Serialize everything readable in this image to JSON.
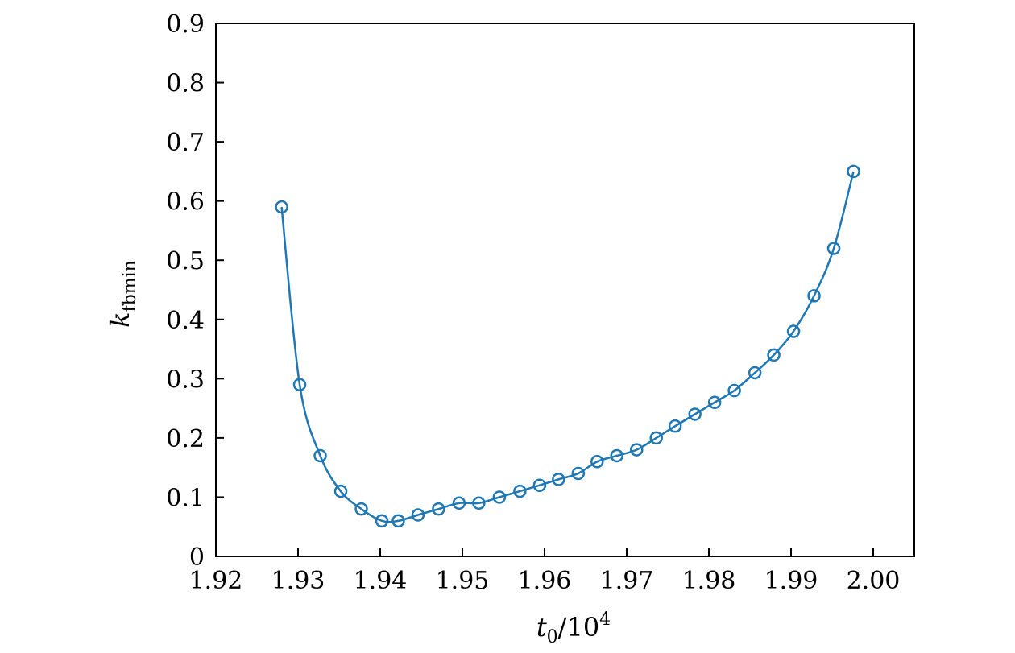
{
  "chart_data": {
    "type": "line",
    "xlabel": {
      "var": "t",
      "sub": "0",
      "rest": "/10",
      "sup": "4"
    },
    "ylabel": {
      "var": "k",
      "sub": "fbmin"
    },
    "xlim": [
      1.92,
      2.005
    ],
    "ylim": [
      0,
      0.9
    ],
    "xticks": [
      "1.92",
      "1.93",
      "1.94",
      "1.95",
      "1.96",
      "1.97",
      "1.98",
      "1.99",
      "2.00"
    ],
    "yticks": [
      "0",
      "0.1",
      "0.2",
      "0.3",
      "0.4",
      "0.5",
      "0.6",
      "0.7",
      "0.8",
      "0.9"
    ],
    "grid": false,
    "color": "#1f77b4",
    "marker": "circle-open",
    "series": [
      {
        "x": [
          1.928,
          1.9302,
          1.9327,
          1.9352,
          1.9377,
          1.9402,
          1.9422,
          1.9446,
          1.9471,
          1.9496,
          1.952,
          1.9545,
          1.957,
          1.9594,
          1.9617,
          1.9641,
          1.9664,
          1.9688,
          1.9712,
          1.9736,
          1.9759,
          1.9783,
          1.9807,
          1.9831,
          1.9856,
          1.9879,
          1.9903,
          1.9928,
          1.9952,
          1.9976
        ],
        "y": [
          0.59,
          0.29,
          0.17,
          0.11,
          0.08,
          0.06,
          0.06,
          0.07,
          0.08,
          0.09,
          0.09,
          0.1,
          0.11,
          0.12,
          0.13,
          0.14,
          0.16,
          0.17,
          0.18,
          0.2,
          0.22,
          0.24,
          0.26,
          0.28,
          0.31,
          0.34,
          0.38,
          0.44,
          0.52,
          0.65
        ]
      }
    ]
  }
}
